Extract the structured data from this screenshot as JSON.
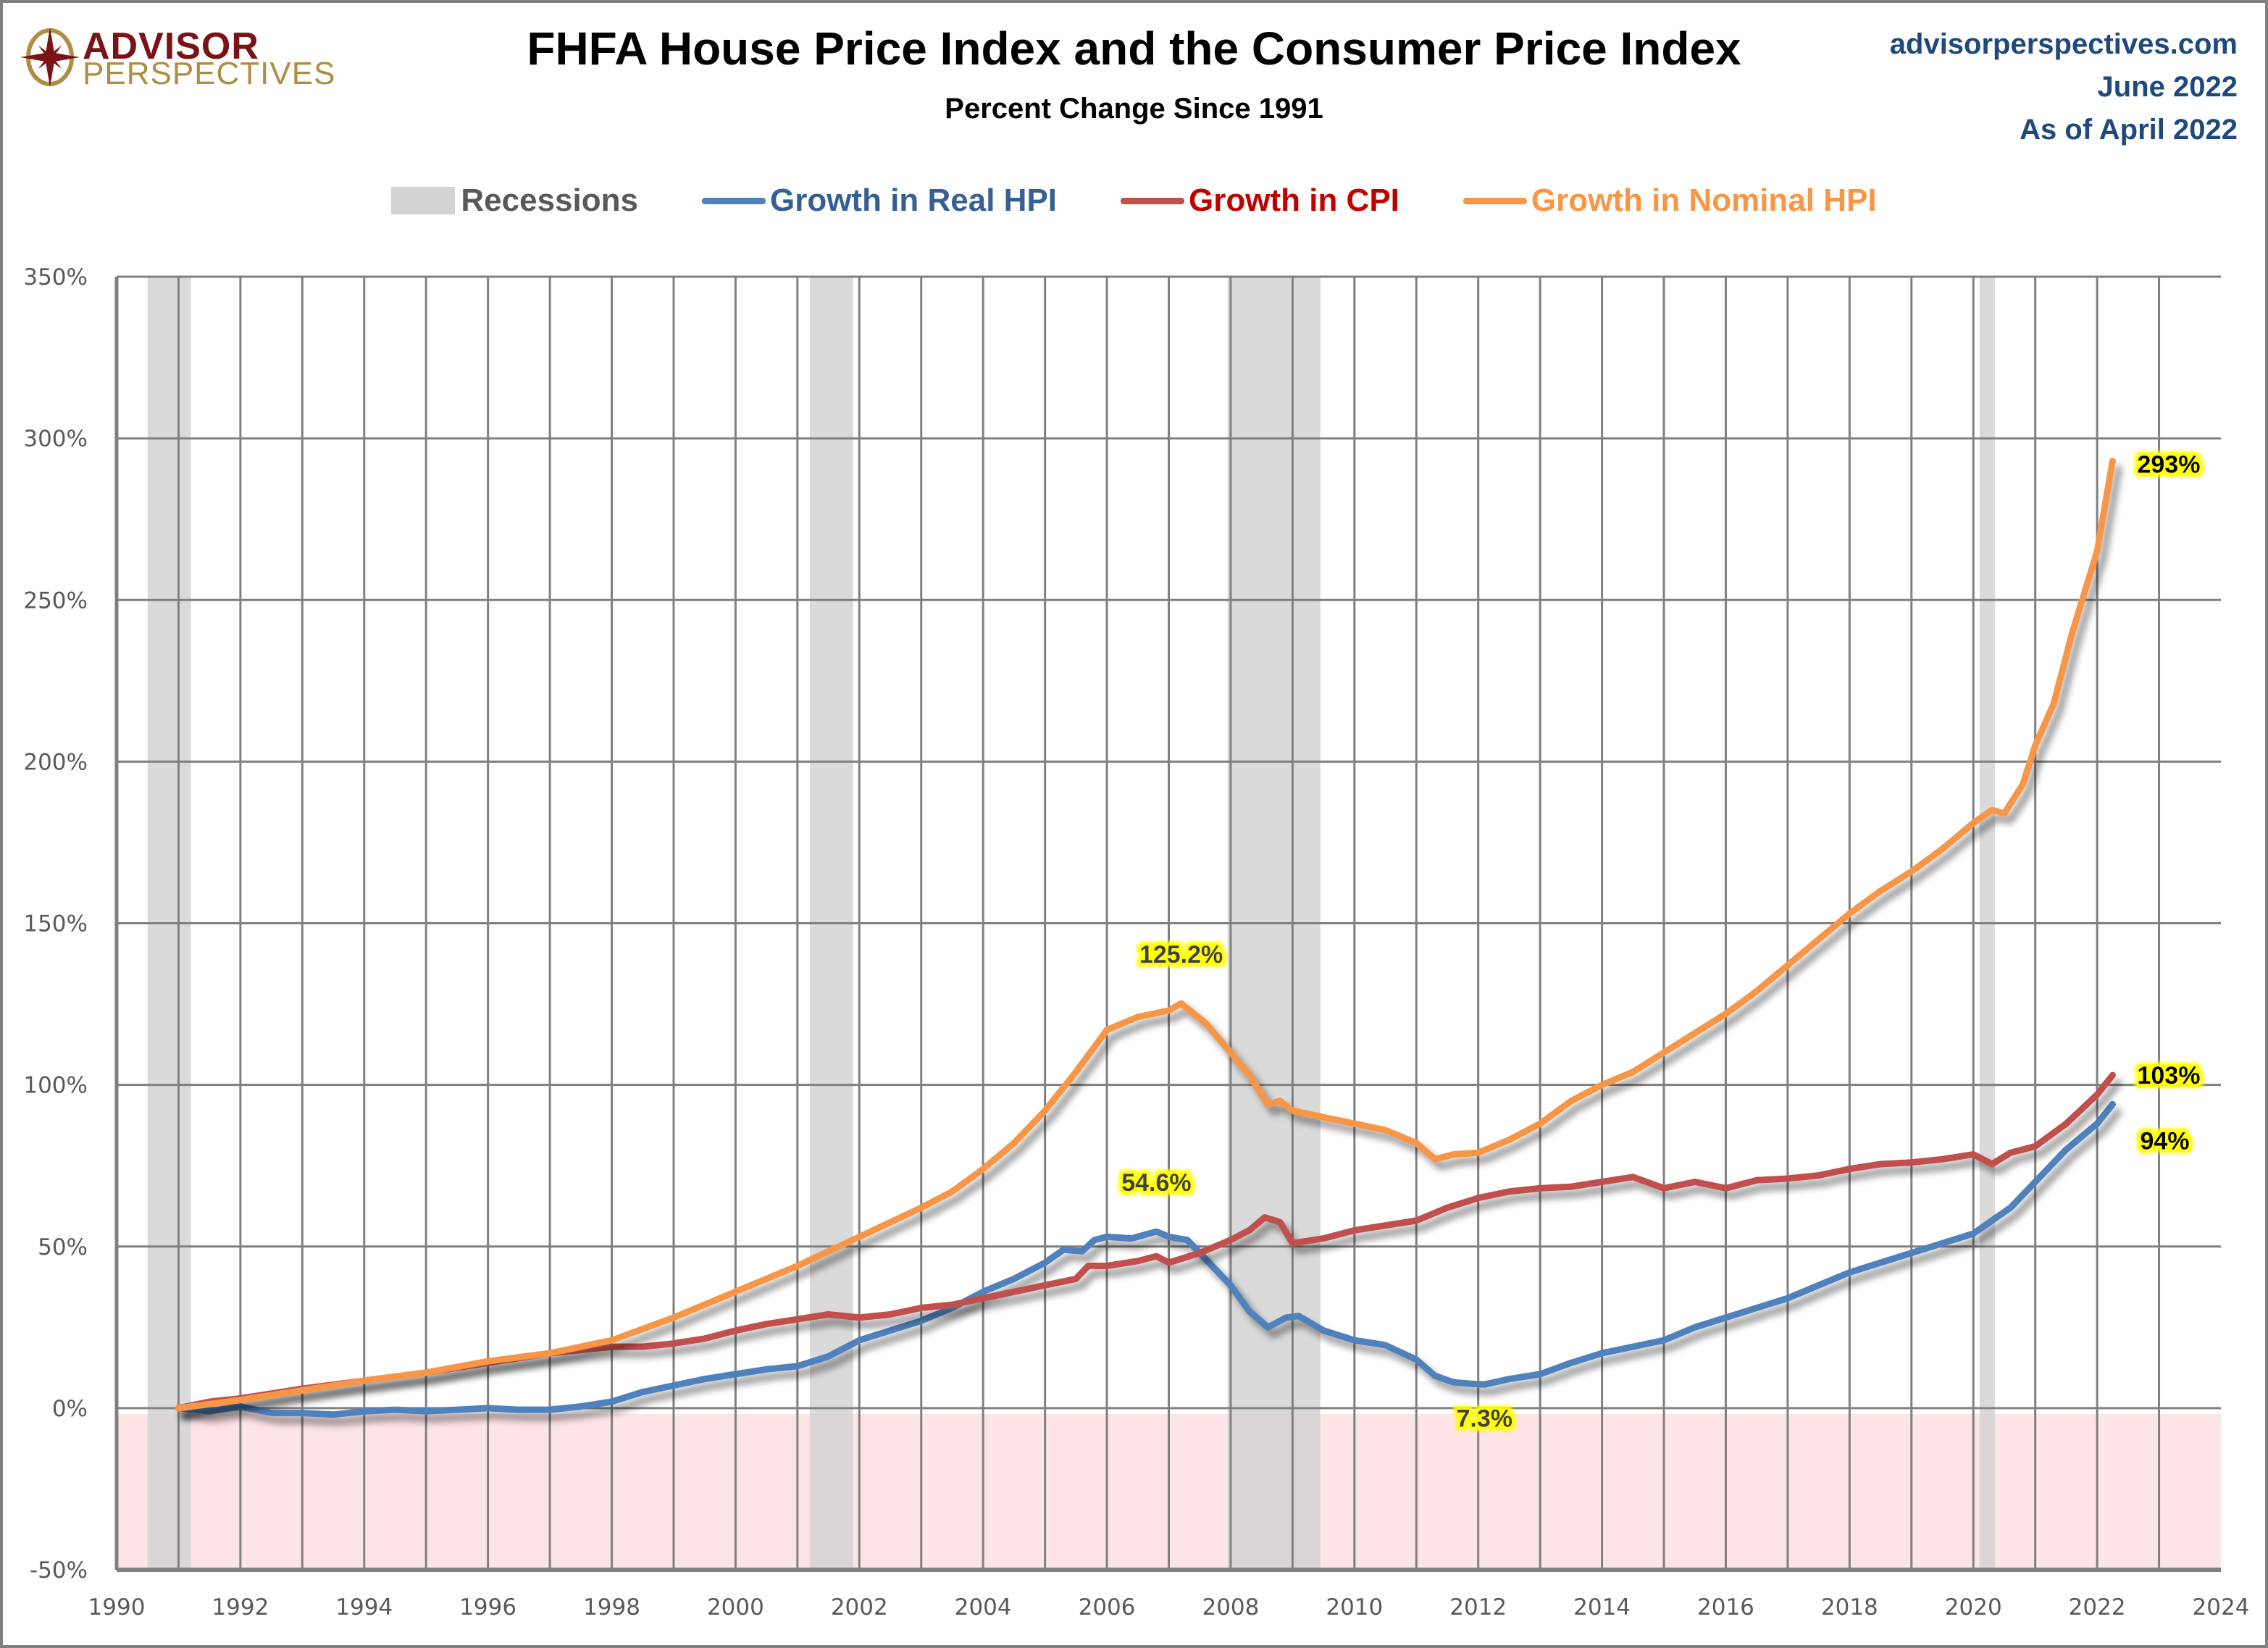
{
  "header": {
    "logo_top": "ADVISOR",
    "logo_bottom": "PERSPECTIVES",
    "logo_icon": "compass-star-icon",
    "title": "FHFA House Price Index and the Consumer Price Index",
    "subtitle": "Percent Change Since 1991",
    "source_lines": [
      "advisorperspectives.com",
      "June 2022",
      "As of April 2022"
    ]
  },
  "colors": {
    "real_hpi": "#4f81bd",
    "cpi": "#c0504d",
    "nominal_hpi": "#f79646",
    "recession": "#d3d3d3",
    "negative_zone": "#fde4e6",
    "grid": "#808080",
    "legend_recession_text": "#595959",
    "legend_real_text": "#376092",
    "legend_cpi_text": "#c00000",
    "legend_nominal_text": "#f79646",
    "annotation_bg": "#ffff00",
    "source_text": "#1f497d",
    "logo_red": "#7a1315",
    "logo_gold": "#b08d45"
  },
  "legend": [
    {
      "key": "recessions",
      "label": "Recessions",
      "type": "box"
    },
    {
      "key": "real_hpi",
      "label": "Growth in Real HPI",
      "type": "line"
    },
    {
      "key": "cpi",
      "label": "Growth in CPI",
      "type": "line"
    },
    {
      "key": "nominal_hpi",
      "label": "Growth in Nominal HPI",
      "type": "line"
    }
  ],
  "chart_data": {
    "type": "line",
    "title": "FHFA House Price Index and the Consumer Price Index",
    "subtitle": "Percent Change Since 1991",
    "xlabel": "",
    "ylabel": "",
    "xlim": [
      1990,
      2024
    ],
    "ylim": [
      -50,
      350
    ],
    "x_ticks": [
      "1990",
      "1992",
      "1994",
      "1996",
      "1998",
      "2000",
      "2002",
      "2004",
      "2006",
      "2008",
      "2010",
      "2012",
      "2014",
      "2016",
      "2018",
      "2020",
      "2022",
      "2024"
    ],
    "y_ticks": [
      "-50%",
      "0%",
      "50%",
      "100%",
      "150%",
      "200%",
      "250%",
      "300%",
      "350%"
    ],
    "y_tick_values": [
      -50,
      0,
      50,
      100,
      150,
      200,
      250,
      300,
      350
    ],
    "grid": true,
    "x_gridlines_every_years": 1,
    "negative_region_shaded": true,
    "legend_position": "top",
    "recessions": [
      {
        "start": 1990.5,
        "end": 1991.2
      },
      {
        "start": 2001.2,
        "end": 2001.9
      },
      {
        "start": 2007.95,
        "end": 2009.45
      },
      {
        "start": 2020.1,
        "end": 2020.35
      }
    ],
    "series": [
      {
        "name": "Growth in Real HPI",
        "key": "real_hpi",
        "x": [
          1991.0,
          1991.5,
          1992.0,
          1992.5,
          1993.0,
          1993.5,
          1994.0,
          1994.5,
          1995.0,
          1995.5,
          1996.0,
          1996.5,
          1997.0,
          1997.5,
          1998.0,
          1998.5,
          1999.0,
          1999.5,
          2000.0,
          2000.5,
          2001.0,
          2001.5,
          2002.0,
          2002.5,
          2003.0,
          2003.5,
          2004.0,
          2004.5,
          2005.0,
          2005.3,
          2005.6,
          2005.8,
          2006.0,
          2006.4,
          2006.8,
          2007.0,
          2007.3,
          2007.6,
          2008.0,
          2008.3,
          2008.6,
          2008.9,
          2009.1,
          2009.5,
          2010.0,
          2010.5,
          2011.0,
          2011.3,
          2011.6,
          2011.9,
          2012.1,
          2012.5,
          2013.0,
          2013.5,
          2014.0,
          2014.5,
          2015.0,
          2015.5,
          2016.0,
          2016.5,
          2017.0,
          2017.5,
          2018.0,
          2018.5,
          2019.0,
          2019.5,
          2020.0,
          2020.3,
          2020.6,
          2021.0,
          2021.5,
          2022.0,
          2022.25
        ],
        "values": [
          0.0,
          -1.0,
          0.5,
          -1.5,
          -1.5,
          -2.0,
          -1.0,
          -0.5,
          -1.0,
          -0.5,
          0.0,
          -0.5,
          -0.5,
          0.5,
          2.0,
          5.0,
          7.0,
          9.0,
          10.5,
          12.0,
          13.0,
          16.0,
          21.0,
          24.0,
          27.0,
          31.0,
          36.0,
          40.0,
          45.0,
          49.0,
          48.5,
          52.0,
          53.0,
          52.5,
          54.6,
          53.0,
          52.0,
          46.0,
          38.0,
          30.0,
          25.0,
          28.0,
          28.5,
          24.0,
          21.0,
          19.5,
          15.0,
          10.0,
          8.0,
          7.5,
          7.3,
          9.0,
          10.5,
          14.0,
          17.0,
          19.0,
          21.0,
          25.0,
          28.0,
          31.0,
          34.0,
          38.0,
          42.0,
          45.0,
          48.0,
          51.0,
          54.0,
          58.0,
          62.0,
          70.0,
          80.0,
          88.0,
          94.0
        ]
      },
      {
        "name": "Growth in CPI",
        "key": "cpi",
        "x": [
          1991.0,
          1991.5,
          1992.0,
          1993.0,
          1994.0,
          1995.0,
          1996.0,
          1997.0,
          1998.0,
          1998.5,
          1999.0,
          1999.5,
          2000.0,
          2000.5,
          2001.0,
          2001.5,
          2002.0,
          2002.5,
          2003.0,
          2003.5,
          2004.0,
          2004.5,
          2005.0,
          2005.5,
          2005.7,
          2006.0,
          2006.5,
          2006.8,
          2007.0,
          2007.5,
          2008.0,
          2008.3,
          2008.55,
          2008.8,
          2009.0,
          2009.5,
          2010.0,
          2010.5,
          2011.0,
          2011.5,
          2012.0,
          2012.5,
          2013.0,
          2013.5,
          2014.0,
          2014.5,
          2015.0,
          2015.5,
          2016.0,
          2016.5,
          2017.0,
          2017.5,
          2018.0,
          2018.5,
          2019.0,
          2019.5,
          2020.0,
          2020.3,
          2020.6,
          2021.0,
          2021.5,
          2022.0,
          2022.25
        ],
        "values": [
          0.0,
          2.0,
          3.0,
          6.0,
          8.5,
          11.0,
          14.0,
          17.0,
          19.0,
          19.0,
          20.0,
          21.5,
          24.0,
          26.0,
          27.5,
          29.0,
          28.0,
          29.0,
          31.0,
          32.0,
          34.0,
          36.0,
          38.0,
          40.0,
          44.0,
          44.0,
          45.5,
          47.0,
          45.0,
          48.0,
          52.0,
          55.0,
          59.0,
          57.5,
          51.0,
          52.5,
          55.0,
          56.5,
          58.0,
          62.0,
          65.0,
          67.0,
          68.0,
          68.5,
          70.0,
          71.5,
          68.0,
          70.0,
          68.0,
          70.5,
          71.0,
          72.0,
          74.0,
          75.5,
          76.0,
          77.0,
          78.5,
          75.5,
          79.0,
          81.0,
          88.0,
          97.0,
          103.0
        ]
      },
      {
        "name": "Growth in Nominal HPI",
        "key": "nominal_hpi",
        "x": [
          1991.0,
          1992.0,
          1993.0,
          1994.0,
          1995.0,
          1996.0,
          1997.0,
          1998.0,
          1999.0,
          2000.0,
          2001.0,
          2002.0,
          2003.0,
          2003.5,
          2004.0,
          2004.5,
          2005.0,
          2005.5,
          2006.0,
          2006.5,
          2007.0,
          2007.2,
          2007.6,
          2008.0,
          2008.3,
          2008.6,
          2008.8,
          2009.0,
          2009.5,
          2010.0,
          2010.5,
          2011.0,
          2011.3,
          2011.6,
          2012.0,
          2012.5,
          2013.0,
          2013.5,
          2014.0,
          2014.5,
          2015.0,
          2015.5,
          2016.0,
          2016.5,
          2017.0,
          2017.5,
          2018.0,
          2018.5,
          2019.0,
          2019.5,
          2020.0,
          2020.3,
          2020.5,
          2020.8,
          2021.0,
          2021.3,
          2021.6,
          2022.0,
          2022.25
        ],
        "values": [
          0.0,
          2.5,
          5.5,
          8.5,
          11.0,
          14.5,
          17.0,
          21.0,
          28.0,
          36.0,
          44.0,
          53.0,
          62.0,
          67.0,
          74.0,
          82.0,
          92.0,
          104.0,
          117.0,
          121.0,
          123.0,
          125.2,
          119.0,
          110.0,
          103.0,
          94.0,
          95.0,
          92.0,
          90.0,
          88.0,
          86.0,
          82.0,
          77.0,
          78.5,
          79.0,
          83.0,
          88.0,
          95.0,
          100.0,
          104.0,
          110.0,
          116.0,
          122.0,
          129.0,
          137.0,
          145.0,
          153.0,
          160.0,
          166.0,
          173.0,
          181.0,
          185.0,
          184.0,
          193.0,
          205.0,
          218.0,
          240.0,
          265.0,
          293.0
        ]
      }
    ],
    "annotations": [
      {
        "label": "293%",
        "series": "nominal_hpi",
        "x": 2022.25,
        "y": 293,
        "position": "right"
      },
      {
        "label": "103%",
        "series": "cpi",
        "x": 2022.25,
        "y": 103,
        "position": "right"
      },
      {
        "label": "94%",
        "series": "real_hpi",
        "x": 2022.25,
        "y": 94,
        "position": "right"
      },
      {
        "label": "125.2%",
        "series": "nominal_hpi",
        "x": 2007.2,
        "y": 125.2,
        "position": "above"
      },
      {
        "label": "54.6%",
        "series": "real_hpi",
        "x": 2006.8,
        "y": 54.6,
        "position": "above"
      },
      {
        "label": "7.3%",
        "series": "real_hpi",
        "x": 2012.1,
        "y": 7.3,
        "position": "below"
      }
    ]
  }
}
